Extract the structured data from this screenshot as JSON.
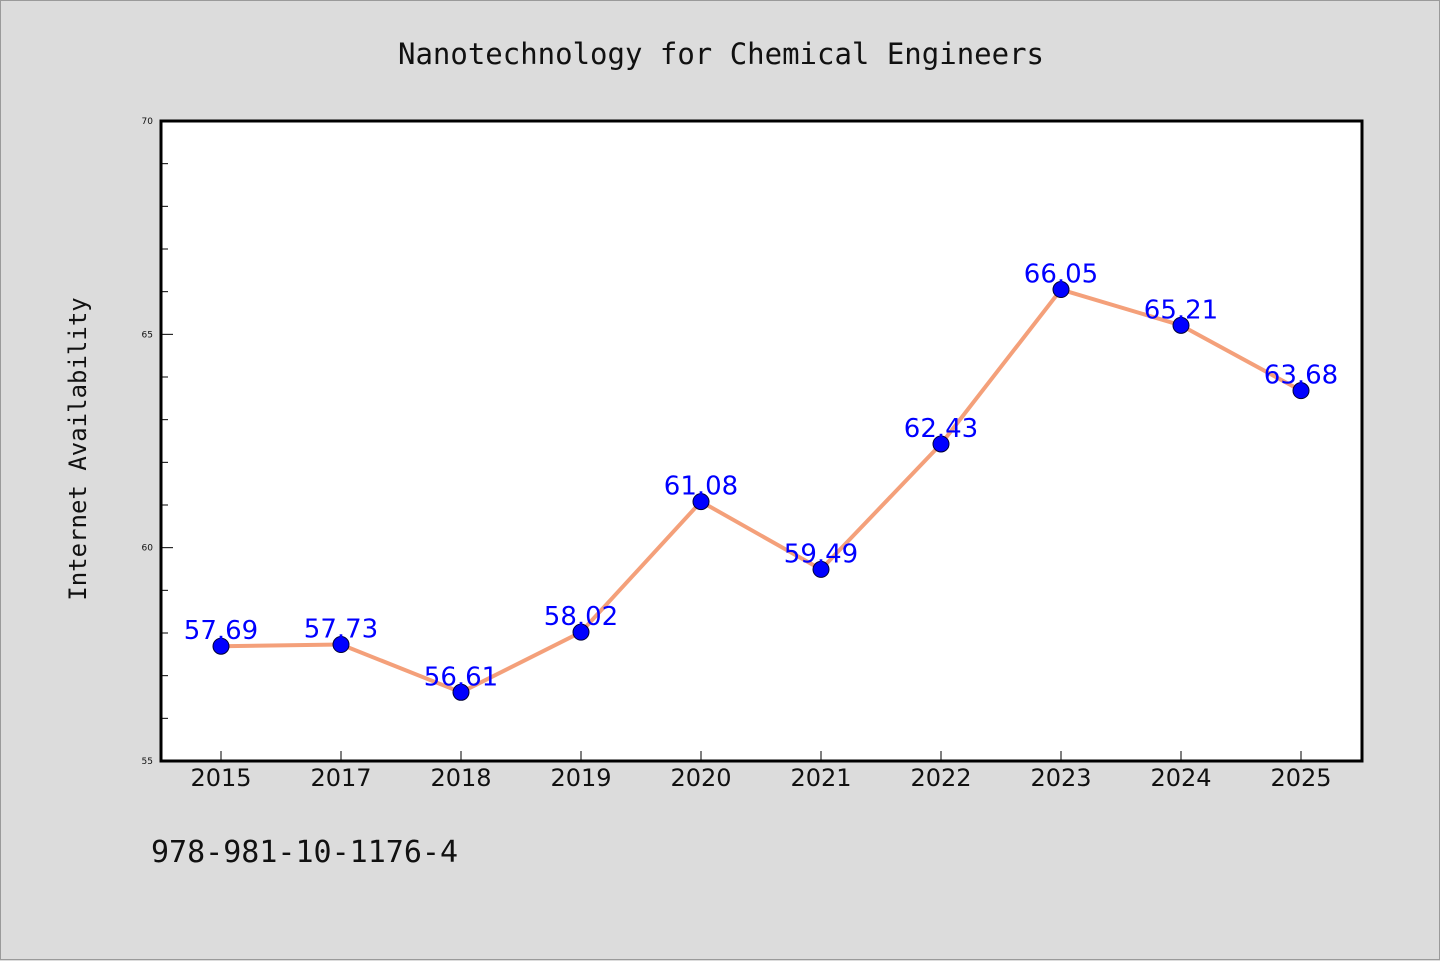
{
  "footer_text": "978-981-10-1176-4",
  "chart_data": {
    "type": "line",
    "title": "Nanotechnology for Chemical Engineers",
    "xlabel": "",
    "ylabel": "Internet Availability",
    "categories": [
      "2015",
      "2017",
      "2018",
      "2019",
      "2020",
      "2021",
      "2022",
      "2023",
      "2024",
      "2025"
    ],
    "series": [
      {
        "values": [
          57.69,
          57.73,
          56.61,
          58.02,
          61.08,
          59.49,
          62.43,
          66.05,
          65.21,
          63.68
        ],
        "line_color": "#f4a07a",
        "marker_color": "#0000ff"
      }
    ],
    "data_labels": [
      "57.69",
      "57.73",
      "56.61",
      "58.02",
      "61.08",
      "59.49",
      "62.43",
      "66.05",
      "65.21",
      "63.68"
    ],
    "ylim": [
      55,
      70
    ],
    "yticks": [
      "55",
      "60",
      "65",
      "70"
    ],
    "grid": false,
    "legend": "none"
  }
}
